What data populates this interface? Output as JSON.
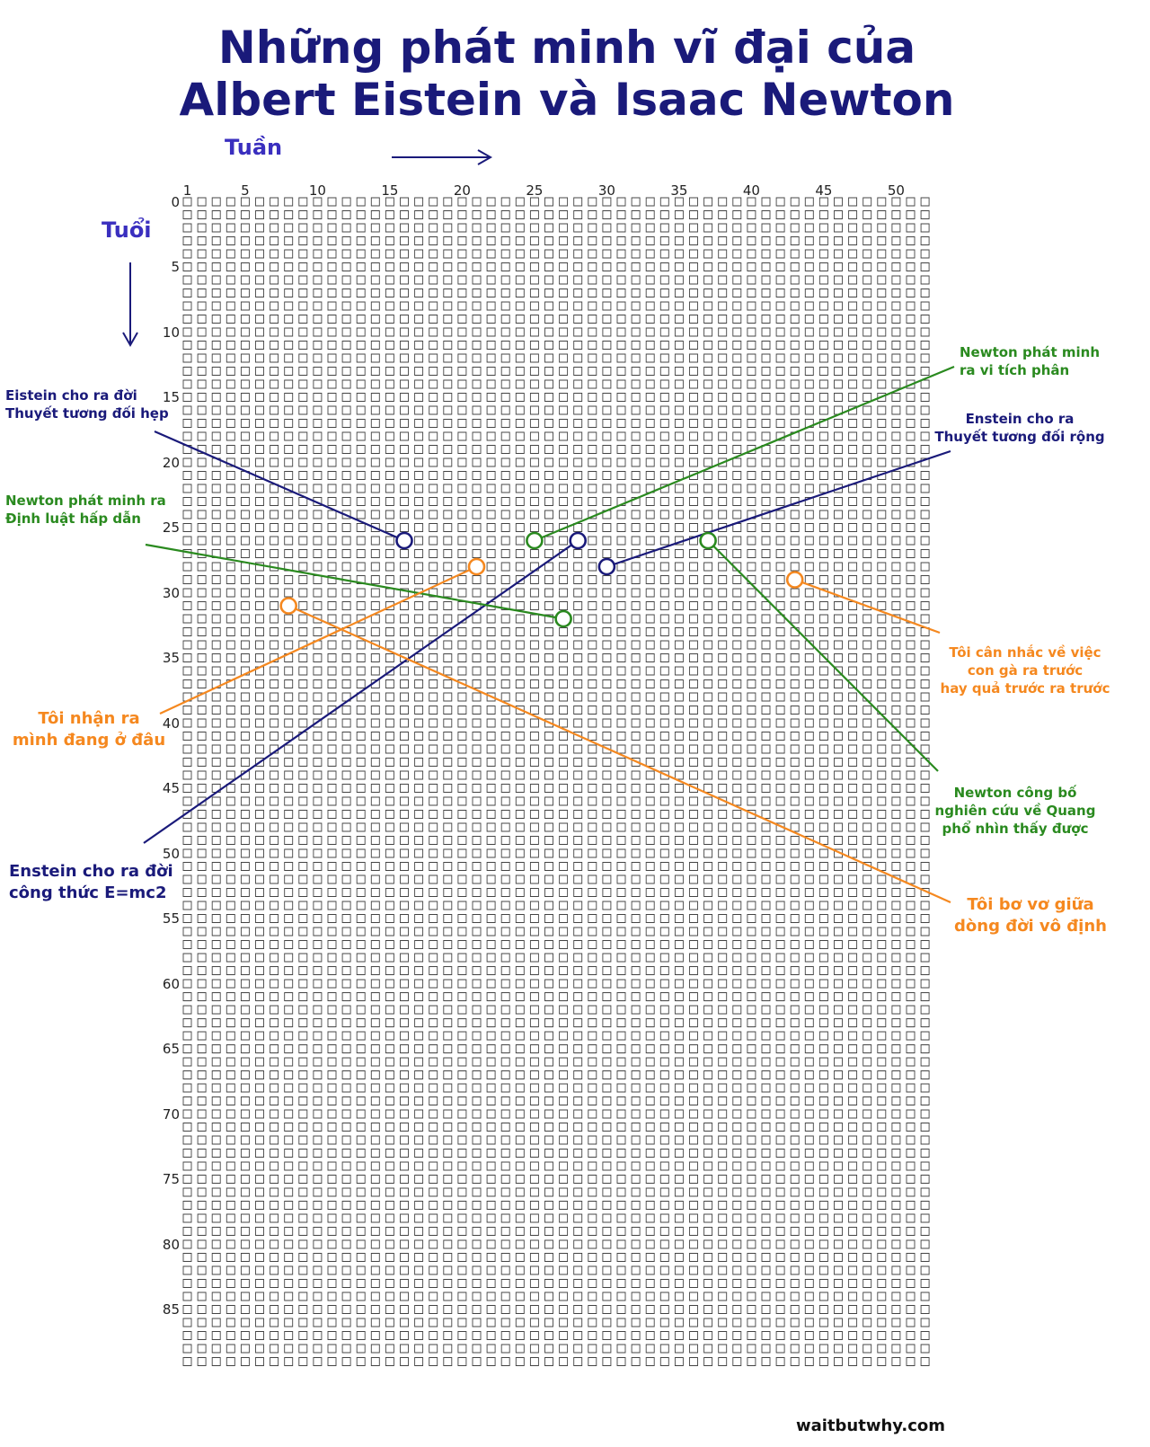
{
  "title": {
    "line1": "Những phát minh vĩ đại của",
    "line2": "Albert Eistein và Isaac Newton"
  },
  "axes": {
    "x_label": "Tuần",
    "y_label": "Tuổi",
    "x_ticks": [
      "1",
      "5",
      "10",
      "15",
      "20",
      "25",
      "30",
      "35",
      "40",
      "45",
      "50"
    ],
    "y_ticks": [
      "0",
      "5",
      "10",
      "15",
      "20",
      "25",
      "30",
      "35",
      "40",
      "45",
      "50",
      "55",
      "60",
      "65",
      "70",
      "75",
      "80",
      "85"
    ],
    "weeks_per_row": 52,
    "rows": 90
  },
  "colors": {
    "navy": "#1a1a7a",
    "green": "#2a8a1f",
    "orange": "#f5881f",
    "axis_label": "#3a2fbf"
  },
  "annotations": [
    {
      "id": "einstein-special-relativity",
      "color": "navy",
      "week": 16,
      "age": 26,
      "lines": [
        "Eistein cho ra đời",
        "Thuyết tương đối hẹp"
      ]
    },
    {
      "id": "newton-calculus",
      "color": "green",
      "week": 25,
      "age": 26,
      "lines": [
        "Newton phát minh",
        "ra vi tích phân"
      ]
    },
    {
      "id": "einstein-emc2",
      "color": "navy",
      "week": 28,
      "age": 26,
      "lines": [
        "Enstein cho ra đời",
        "công thức E=mc2"
      ]
    },
    {
      "id": "einstein-general-relativity",
      "color": "navy",
      "week": 30,
      "age": 28,
      "lines": [
        "Enstein cho ra",
        "Thuyết tương đối rộng"
      ]
    },
    {
      "id": "newton-optics",
      "color": "green",
      "week": 37,
      "age": 26,
      "lines": [
        "Newton công bố",
        "nghiên cứu về Quang",
        "phổ nhìn thấy được"
      ]
    },
    {
      "id": "newton-gravity",
      "color": "green",
      "week": 27,
      "age": 32,
      "lines": [
        "Newton phát minh ra",
        "Định luật hấp dẫn"
      ]
    },
    {
      "id": "me-where-i-am",
      "color": "orange",
      "week": 21,
      "age": 28,
      "lines": [
        "Tôi nhận ra",
        "mình đang ở đâu"
      ]
    },
    {
      "id": "me-lost",
      "color": "orange",
      "week": 8,
      "age": 31,
      "lines": [
        "Tôi bơ vơ giữa",
        "dòng đời vô định"
      ]
    },
    {
      "id": "me-chicken-egg",
      "color": "orange",
      "week": 43,
      "age": 29,
      "lines": [
        "Tôi cân nhắc về việc",
        "con gà ra trước",
        "hay quả trước ra trước"
      ]
    }
  ],
  "footer": {
    "brand": "waitbutwhy",
    "dot": ".",
    "tld": "com"
  }
}
